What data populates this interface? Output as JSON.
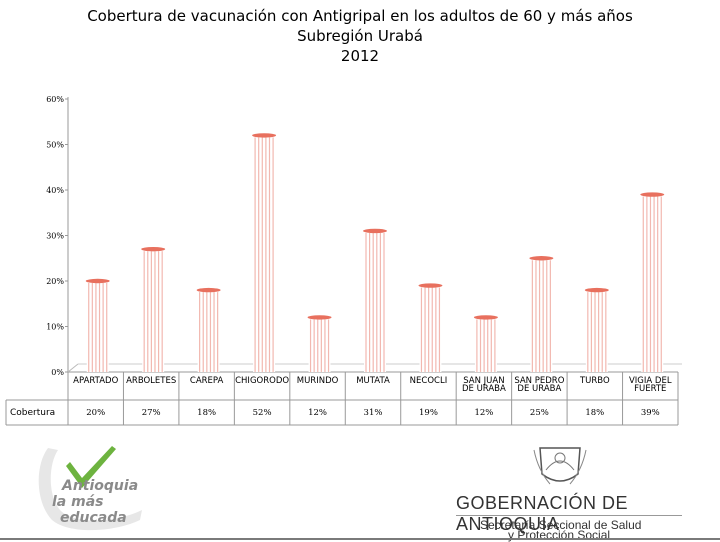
{
  "header": {
    "title_line1": "Cobertura de vacunación con Antigripal en los adultos de 60 y más años",
    "title_line2": "Subregión Urabá",
    "title_line3": "2012"
  },
  "chart_data": {
    "type": "bar",
    "categories": [
      "APARTADO",
      "ARBOLETES",
      "CAREPA",
      "CHIGORODO",
      "MURINDO",
      "MUTATA",
      "NECOCLI",
      "SAN JUAN DE URABA",
      "SAN PEDRO DE URABA",
      "TURBO",
      "VIGIA DEL FUERTE"
    ],
    "series": [
      {
        "name": "Cobertura",
        "values": [
          20,
          27,
          18,
          52,
          12,
          31,
          19,
          12,
          25,
          18,
          39
        ]
      }
    ],
    "value_labels": [
      "20%",
      "27%",
      "18%",
      "52%",
      "12%",
      "31%",
      "19%",
      "12%",
      "25%",
      "18%",
      "39%"
    ],
    "y_ticks": [
      "0%",
      "10%",
      "20%",
      "30%",
      "40%",
      "50%",
      "60%"
    ],
    "ylim": [
      0,
      60
    ],
    "grid": false,
    "bar_color": "#f2b8b0",
    "bar_top_color": "#e8705e",
    "data_table": true
  },
  "footer": {
    "logo_left_lines": [
      "Antioquia",
      "la más",
      "educada"
    ],
    "gov_name": "GOBERNACIÓN DE ANTIOQUIA",
    "secretaria_line1": "Secretaría Seccional de Salud",
    "secretaria_line2": "y Protección Social",
    "brand_green": "#6db33f"
  }
}
